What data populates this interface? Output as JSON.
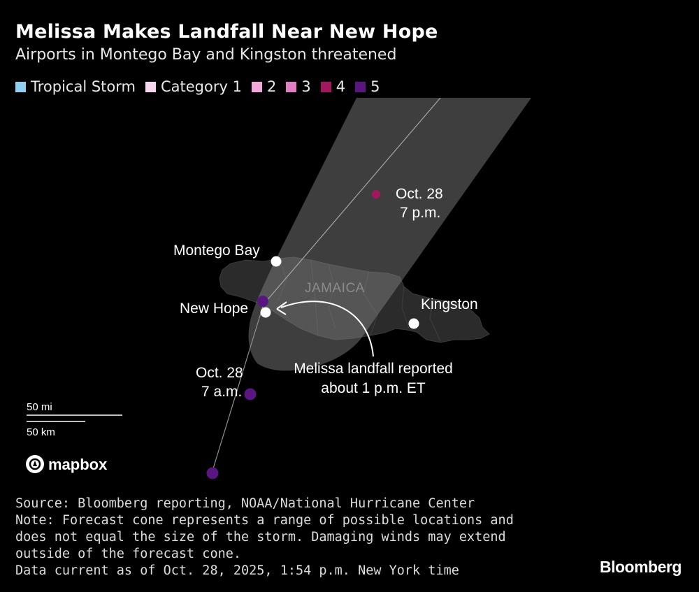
{
  "title": "Melissa Makes Landfall Near New Hope",
  "subtitle": "Airports in Montego Bay and Kingston threatened",
  "legend": [
    {
      "label": "Tropical Storm",
      "color": "#8fd0f0"
    },
    {
      "label": "Category 1",
      "color": "#f6d6ef"
    },
    {
      "label": "2",
      "color": "#f0a9d9"
    },
    {
      "label": "3",
      "color": "#e07fc2"
    },
    {
      "label": "4",
      "color": "#a2175e"
    },
    {
      "label": "5",
      "color": "#5a1680"
    }
  ],
  "map": {
    "island_label": "JAMAICA",
    "places": {
      "montego_bay": "Montego Bay",
      "new_hope": "New Hope",
      "kingston": "Kingston"
    },
    "track_labels": {
      "future_date": "Oct. 28",
      "future_time": "7 p.m.",
      "past_date": "Oct. 28",
      "past_time": "7 a.m."
    },
    "annotation": {
      "line1": "Melissa landfall reported",
      "line2": "about 1 p.m. ET"
    },
    "scale": {
      "miles": "50 mi",
      "km": "50 km"
    },
    "attribution": "mapbox"
  },
  "footer": {
    "source": "Source: Bloomberg reporting, NOAA/National Hurricane Center",
    "note": "Note: Forecast cone represents a range of possible locations and does not equal the size of the storm. Damaging winds may extend outside of the forecast cone.",
    "data_current": "Data current as of Oct. 28, 2025, 1:54 p.m. New York time"
  },
  "brand": "Bloomberg"
}
